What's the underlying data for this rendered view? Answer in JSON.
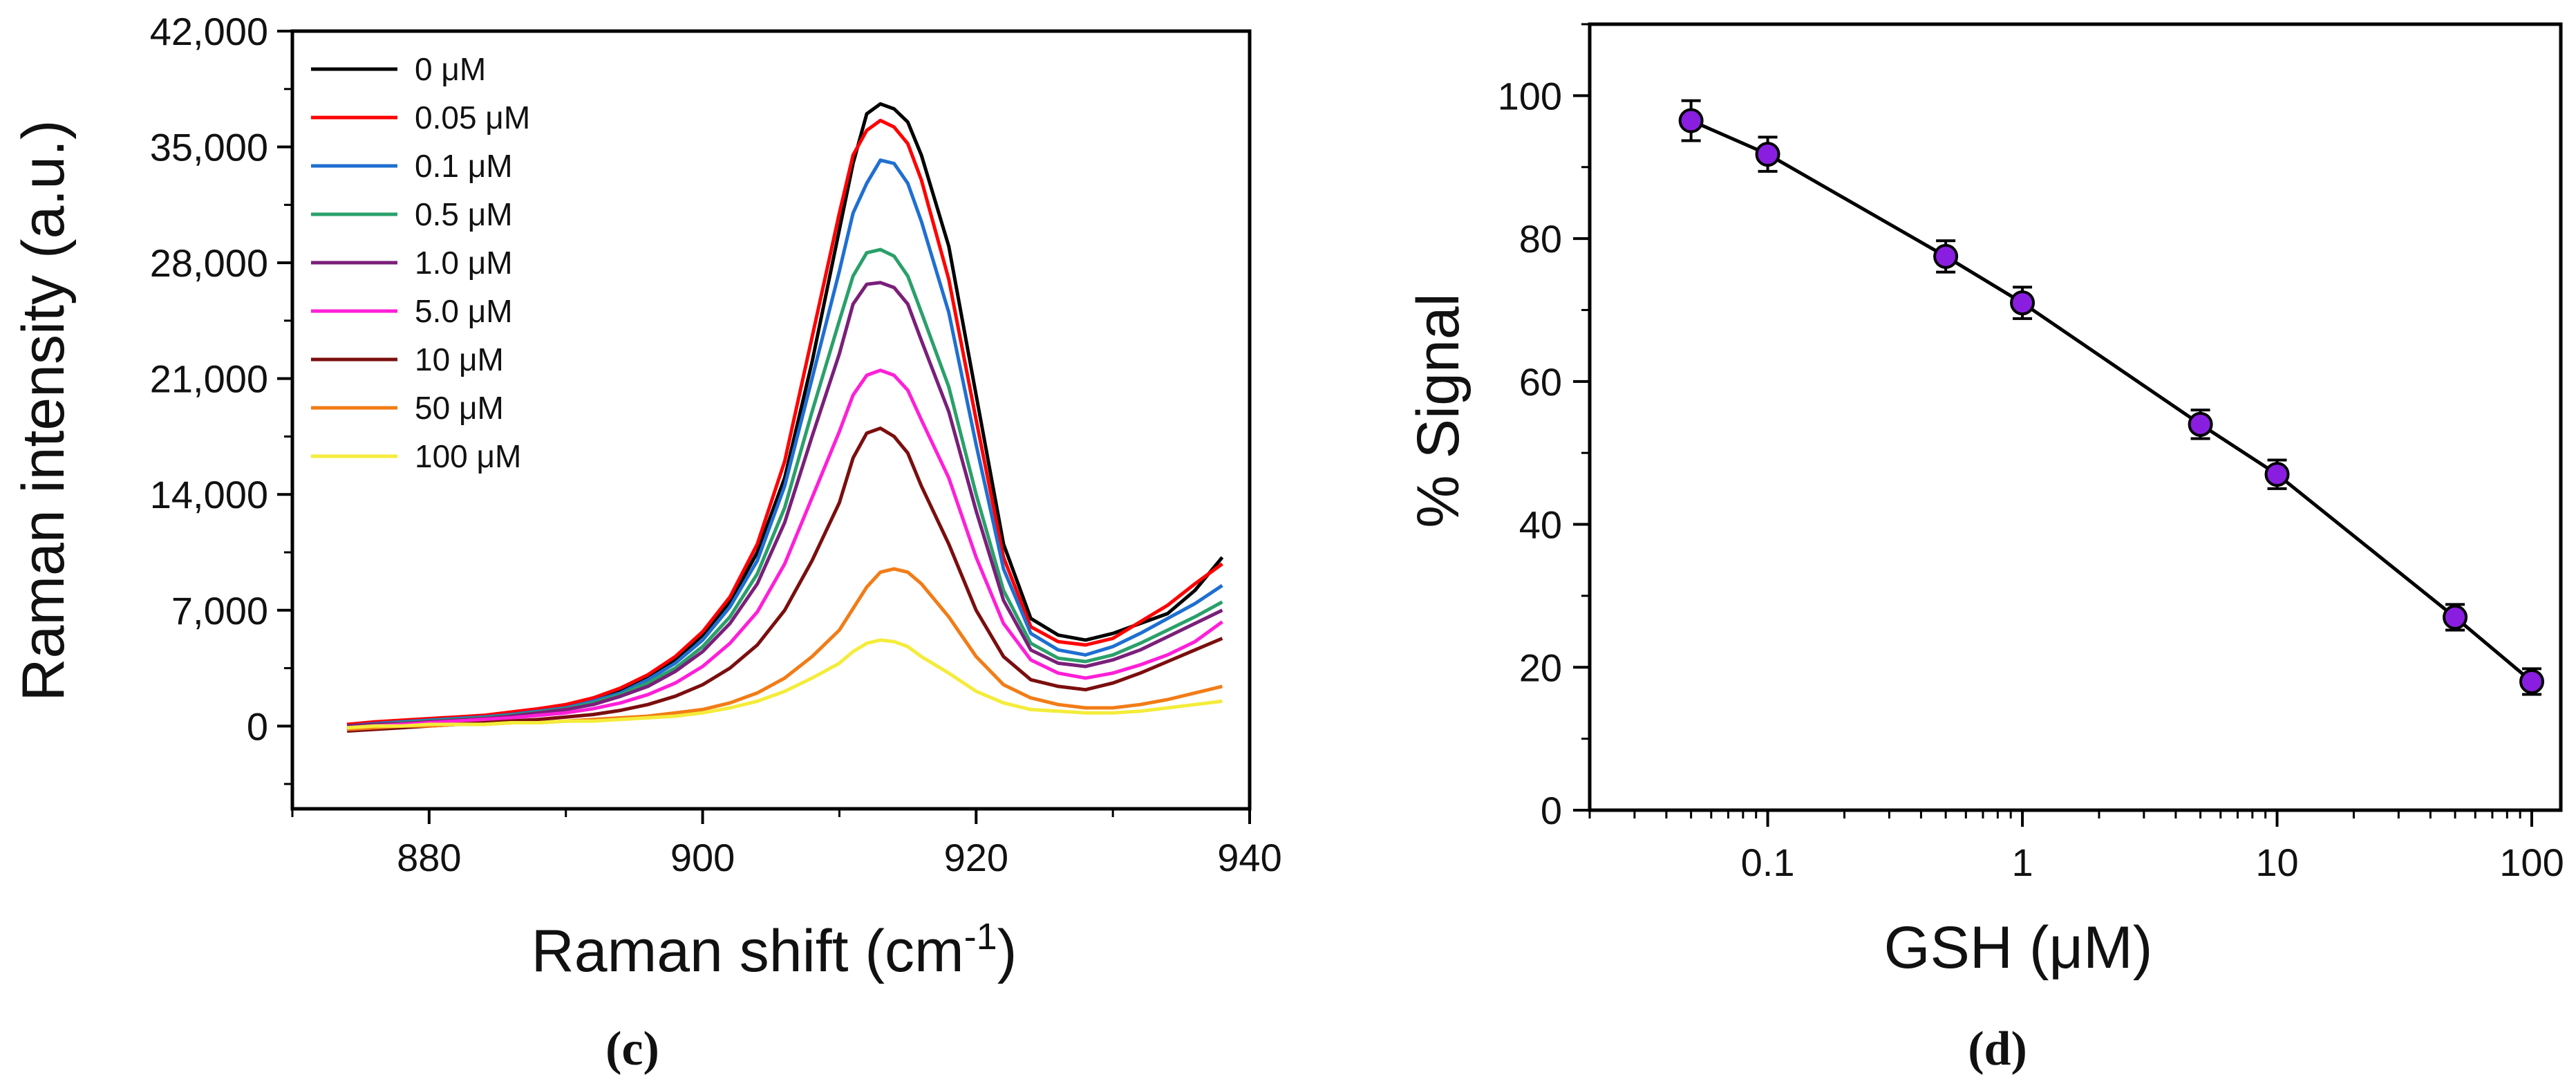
{
  "chart_data": [
    {
      "panel": "(c)",
      "type": "line",
      "xlabel": "Raman shift (cm",
      "xlabel_sup": "-1",
      "xlabel_close": ")",
      "ylabel": "Raman intensity (a.u.)",
      "xlim": [
        870,
        940
      ],
      "ylim": [
        -5000,
        42000
      ],
      "xticks": [
        880,
        900,
        920,
        940
      ],
      "xtick_labels": [
        "880",
        "900",
        "920",
        "940"
      ],
      "yticks": [
        0,
        7000,
        14000,
        21000,
        28000,
        35000,
        42000
      ],
      "ytick_labels": [
        "0",
        "7,000",
        "14,000",
        "21,000",
        "28,000",
        "35,000",
        "42,000"
      ],
      "legend_position": "top-left",
      "x": [
        874,
        876,
        878,
        880,
        882,
        884,
        886,
        888,
        890,
        892,
        894,
        896,
        898,
        900,
        902,
        904,
        906,
        908,
        910,
        911,
        912,
        913,
        914,
        915,
        916,
        918,
        920,
        922,
        924,
        926,
        928,
        930,
        932,
        934,
        936,
        938
      ],
      "series": [
        {
          "name": "0 μM",
          "color": "#000000",
          "values": [
            0,
            200,
            300,
            400,
            500,
            600,
            800,
            1000,
            1200,
            1600,
            2200,
            3000,
            4000,
            5500,
            7500,
            10500,
            15000,
            22000,
            30000,
            34000,
            37000,
            37600,
            37300,
            36500,
            34500,
            29000,
            20000,
            11000,
            6500,
            5500,
            5200,
            5600,
            6200,
            6800,
            8200,
            10200
          ]
        },
        {
          "name": "0.05 μM",
          "color": "#ff0000",
          "values": [
            100,
            250,
            350,
            450,
            550,
            650,
            850,
            1050,
            1300,
            1700,
            2300,
            3100,
            4200,
            5700,
            7800,
            11000,
            16000,
            23500,
            31000,
            34500,
            36000,
            36600,
            36200,
            35200,
            33000,
            27000,
            18500,
            10200,
            6000,
            5100,
            4900,
            5300,
            6300,
            7300,
            8600,
            9800
          ]
        },
        {
          "name": "0.1 μM",
          "color": "#1f6fd1",
          "values": [
            0,
            150,
            250,
            350,
            450,
            550,
            700,
            900,
            1100,
            1500,
            2000,
            2800,
            3800,
            5200,
            7200,
            10000,
            14500,
            21000,
            27500,
            31000,
            32800,
            34200,
            34000,
            32800,
            30500,
            25000,
            17000,
            9500,
            5600,
            4600,
            4300,
            4800,
            5600,
            6500,
            7400,
            8500
          ]
        },
        {
          "name": "0.5 μM",
          "color": "#2aa06a",
          "values": [
            0,
            100,
            200,
            300,
            400,
            500,
            650,
            850,
            1050,
            1400,
            1900,
            2600,
            3500,
            4800,
            6600,
            9200,
            13200,
            19000,
            24500,
            27200,
            28600,
            28800,
            28400,
            27200,
            25000,
            20500,
            14000,
            8200,
            5000,
            4100,
            3900,
            4300,
            5000,
            5800,
            6600,
            7500
          ]
        },
        {
          "name": "1.0 μM",
          "color": "#7a1f7a",
          "values": [
            0,
            100,
            150,
            250,
            350,
            450,
            600,
            800,
            1000,
            1300,
            1800,
            2400,
            3300,
            4500,
            6200,
            8600,
            12300,
            17500,
            22500,
            25500,
            26700,
            26800,
            26500,
            25500,
            23300,
            19000,
            13000,
            7600,
            4600,
            3800,
            3600,
            4000,
            4600,
            5400,
            6200,
            7000
          ]
        },
        {
          "name": "5.0 μM",
          "color": "#ff1fd8",
          "values": [
            -200,
            0,
            100,
            200,
            300,
            400,
            500,
            650,
            800,
            1050,
            1400,
            1900,
            2600,
            3600,
            5000,
            6900,
            9800,
            13800,
            17800,
            20000,
            21200,
            21500,
            21200,
            20300,
            18500,
            15000,
            10200,
            6200,
            4000,
            3200,
            2900,
            3200,
            3700,
            4300,
            5100,
            6300
          ]
        },
        {
          "name": "10 μM",
          "color": "#7b0e0e",
          "values": [
            -300,
            -200,
            -100,
            0,
            100,
            200,
            300,
            400,
            550,
            700,
            950,
            1300,
            1800,
            2500,
            3500,
            4900,
            7000,
            10000,
            13500,
            16200,
            17700,
            18000,
            17500,
            16500,
            14500,
            11000,
            7000,
            4200,
            2800,
            2400,
            2200,
            2600,
            3200,
            3900,
            4600,
            5300
          ]
        },
        {
          "name": "50 μM",
          "color": "#f27c16",
          "values": [
            -200,
            -100,
            0,
            0,
            100,
            100,
            200,
            200,
            300,
            400,
            500,
            600,
            800,
            1000,
            1400,
            2000,
            2900,
            4200,
            5800,
            7100,
            8400,
            9300,
            9500,
            9300,
            8600,
            6600,
            4200,
            2500,
            1700,
            1300,
            1100,
            1100,
            1300,
            1600,
            2000,
            2400
          ]
        },
        {
          "name": "100 μM",
          "color": "#f4ec3a",
          "values": [
            -100,
            0,
            0,
            100,
            100,
            100,
            200,
            200,
            300,
            300,
            400,
            500,
            600,
            800,
            1100,
            1500,
            2100,
            2900,
            3800,
            4500,
            5000,
            5200,
            5100,
            4800,
            4200,
            3200,
            2100,
            1400,
            1000,
            900,
            800,
            800,
            900,
            1100,
            1300,
            1500
          ]
        }
      ]
    },
    {
      "panel": "(d)",
      "type": "scatter",
      "xscale": "log",
      "xlabel": "GSH (μM)",
      "ylabel": "% Signal",
      "xlim": [
        0.02,
        130
      ],
      "ylim": [
        0,
        110
      ],
      "xticks": [
        0.1,
        1,
        10,
        100
      ],
      "xtick_labels": [
        "0.1",
        "1",
        "10",
        "100"
      ],
      "yticks": [
        0,
        20,
        40,
        60,
        80,
        100
      ],
      "ytick_labels": [
        "0",
        "20",
        "40",
        "60",
        "80",
        "100"
      ],
      "marker_color": "#8a1ee0",
      "x": [
        0.05,
        0.1,
        0.5,
        1,
        5,
        10,
        50,
        100
      ],
      "y": [
        96.5,
        91.8,
        77.5,
        71,
        54,
        47,
        27,
        18
      ],
      "yerr": [
        2.8,
        2.4,
        2.2,
        2.2,
        2.0,
        2.0,
        1.8,
        1.8
      ]
    }
  ]
}
